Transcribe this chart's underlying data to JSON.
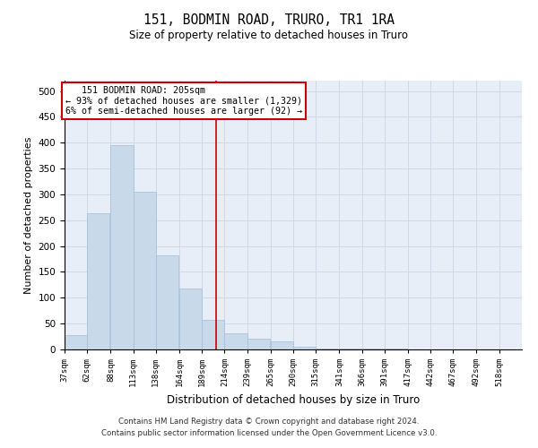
{
  "title": "151, BODMIN ROAD, TRURO, TR1 1RA",
  "subtitle": "Size of property relative to detached houses in Truro",
  "xlabel": "Distribution of detached houses by size in Truro",
  "ylabel": "Number of detached properties",
  "footer_line1": "Contains HM Land Registry data © Crown copyright and database right 2024.",
  "footer_line2": "Contains public sector information licensed under the Open Government Licence v3.0.",
  "bar_color": "#c8daea",
  "bar_edge_color": "#a0bedb",
  "annotation_line_color": "#cc0000",
  "annotation_box_color": "#cc0000",
  "property_size": 205,
  "property_label": "   151 BODMIN ROAD: 205sqm",
  "annotation_line1": "← 93% of detached houses are smaller (1,329)",
  "annotation_line2": "6% of semi-detached houses are larger (92) →",
  "bins": [
    37,
    62,
    88,
    113,
    138,
    164,
    189,
    214,
    239,
    265,
    290,
    315,
    341,
    366,
    391,
    417,
    442,
    467,
    492,
    518,
    543
  ],
  "counts": [
    27,
    263,
    395,
    305,
    182,
    118,
    57,
    32,
    21,
    15,
    5,
    2,
    1,
    1,
    1,
    0,
    0,
    0,
    0,
    0
  ],
  "ylim": [
    0,
    520
  ],
  "yticks": [
    0,
    50,
    100,
    150,
    200,
    250,
    300,
    350,
    400,
    450,
    500
  ],
  "grid_color": "#d0d8e8",
  "background_color": "#e8eef8"
}
